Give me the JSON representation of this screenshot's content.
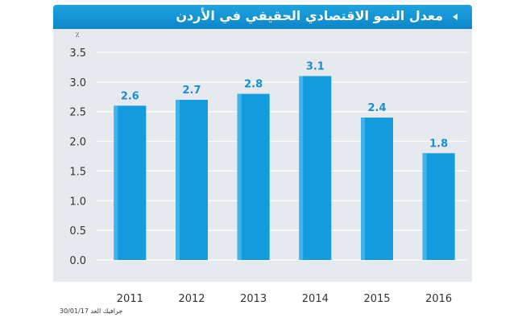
{
  "title": "معدل النمو الاقتصادي الحقيقي في الأردن",
  "credit": "جرافيك الغد 30/01/17",
  "colors": {
    "title_bar": "#1193d6",
    "bar": "#129bde",
    "bar_label": "#1a8fd0",
    "panel": "#e6eaee"
  },
  "chart_data": {
    "type": "bar",
    "title": "معدل النمو الاقتصادي الحقيقي في الأردن",
    "unit": "٪",
    "categories": [
      "2011",
      "2012",
      "2013",
      "2014",
      "2015",
      "2016"
    ],
    "values": [
      2.6,
      2.7,
      2.8,
      3.1,
      2.4,
      1.8
    ],
    "ylim": [
      0,
      3.5
    ],
    "yticks": [
      0.0,
      0.5,
      1.0,
      1.5,
      2.0,
      2.5,
      3.0,
      3.5
    ],
    "ytick_labels": [
      "0.0",
      "0.5",
      "1.0",
      "1.5",
      "2.0",
      "2.5",
      "3.0",
      "3.5"
    ],
    "data_labels": [
      "2.6",
      "2.7",
      "2.8",
      "3.1",
      "2.4",
      "1.8"
    ],
    "grid": true,
    "legend": "none"
  }
}
